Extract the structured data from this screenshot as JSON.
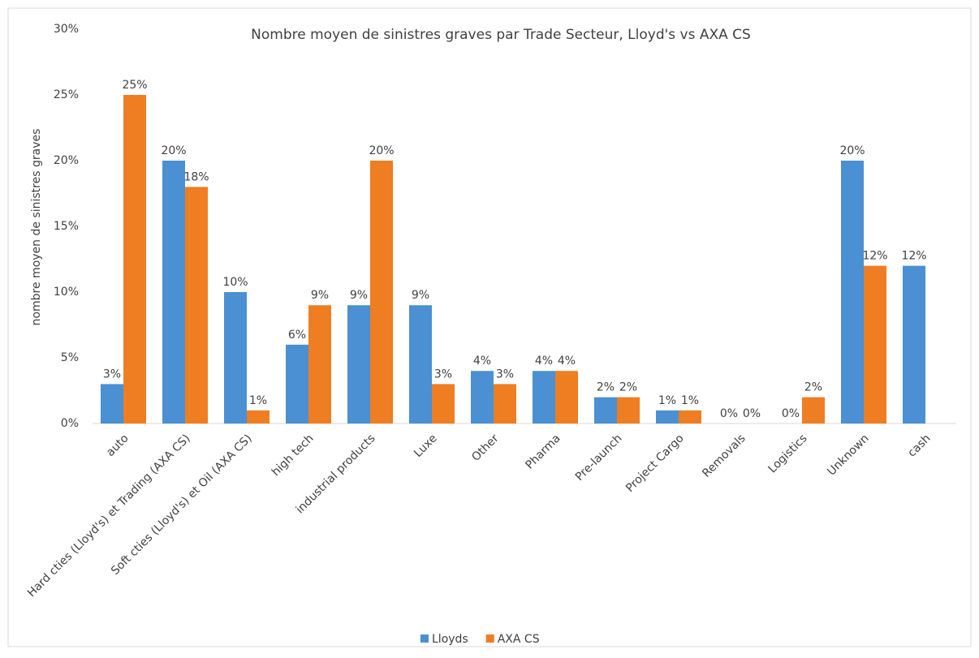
{
  "chart_data": {
    "type": "bar",
    "title": "Nombre moyen de sinistres graves par Trade Secteur, Lloyd's vs AXA CS",
    "y_label": "nombre moyen de sinistres graves",
    "categories": [
      "auto",
      "Hard cties (Lloyd's) et Trading  (AXA CS)",
      "Soft cties (Lloyd's) et Oil (AXA CS)",
      "high tech",
      "industrial products",
      "Luxe",
      "Other",
      "Pharma",
      "Pre-launch",
      "Project Cargo",
      "Removals",
      "Logistics",
      "Unknown",
      "cash"
    ],
    "series": [
      {
        "name": "Lloyds",
        "color": "#4a90d2",
        "values": [
          3,
          20,
          10,
          6,
          9,
          9,
          4,
          4,
          2,
          1,
          0,
          0,
          20,
          12
        ],
        "value_labels": [
          "3%",
          "20%",
          "10%",
          "6%",
          "9%",
          "9%",
          "4%",
          "4%",
          "2%",
          "1%",
          "0%",
          "0%",
          "20%",
          "12%"
        ]
      },
      {
        "name": "AXA CS",
        "color": "#ef7d22",
        "values": [
          25,
          18,
          1,
          9,
          20,
          3,
          3,
          4,
          2,
          1,
          0,
          2,
          12,
          null
        ],
        "value_labels": [
          "25%",
          "18%",
          "1%",
          "9%",
          "20%",
          "3%",
          "3%",
          "4%",
          "2%",
          "1%",
          "0%",
          "2%",
          "12%",
          null
        ]
      }
    ],
    "ylim": [
      0,
      30
    ],
    "yticks": [
      {
        "value": 0,
        "label": "0%"
      },
      {
        "value": 5,
        "label": "5%"
      },
      {
        "value": 10,
        "label": "10%"
      },
      {
        "value": 15,
        "label": "15%"
      },
      {
        "value": 20,
        "label": "20%"
      },
      {
        "value": 25,
        "label": "25%"
      },
      {
        "value": 30,
        "label": "30%"
      }
    ],
    "legend": "bottom"
  }
}
